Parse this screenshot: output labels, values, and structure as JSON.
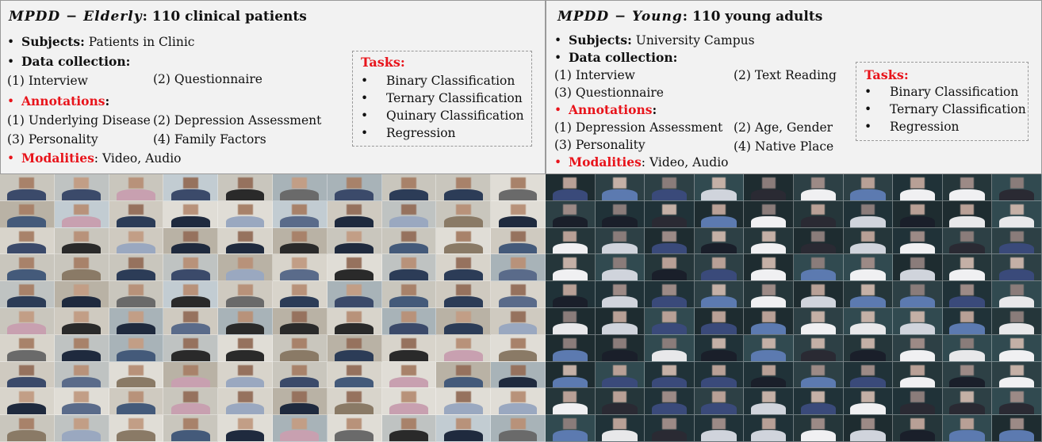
{
  "elderly": {
    "title_name": "MPDD − Elderly",
    "title_rest": ":  110 clinical patients",
    "subjects_label": "Subjects:",
    "subjects_value": "Patients in Clinic",
    "collection_label": "Data collection:",
    "collection_items": [
      "(1) Interview",
      "(2) Questionnaire"
    ],
    "annotations_label": "Annotations",
    "annotations_colon": ":",
    "annotation_items": [
      "(1) Underlying Disease",
      "(2) Depression Assessment",
      "(3) Personality",
      "(4) Family Factors"
    ],
    "modalities_label": "Modalities",
    "modalities_value": ": Video, Audio",
    "tasks_label": "Tasks:",
    "tasks": [
      "Binary Classification",
      "Ternary Classification",
      "Quinary Classification",
      "Regression"
    ]
  },
  "young": {
    "title_name": "MPDD − Young",
    "title_rest": ":  110 young adults",
    "subjects_label": "Subjects:",
    "subjects_value": "University Campus",
    "collection_label": "Data collection:",
    "collection_items": [
      "(1) Interview",
      "(2) Text Reading",
      "(3) Questionnaire"
    ],
    "annotations_label": "Annotations",
    "annotations_colon": ":",
    "annotation_items": [
      "(1) Depression Assessment",
      "(2) Age, Gender",
      "(3) Personality",
      "(4) Native Place"
    ],
    "modalities_label": "Modalities",
    "modalities_value": ": Video, Audio",
    "tasks_label": "Tasks:",
    "tasks": [
      "Binary Classification",
      "Ternary Classification",
      "Regression"
    ]
  },
  "bullet_char": "•",
  "colors": {
    "accent_red": "#e8141b",
    "panel_bg": "#f2f2f2"
  }
}
